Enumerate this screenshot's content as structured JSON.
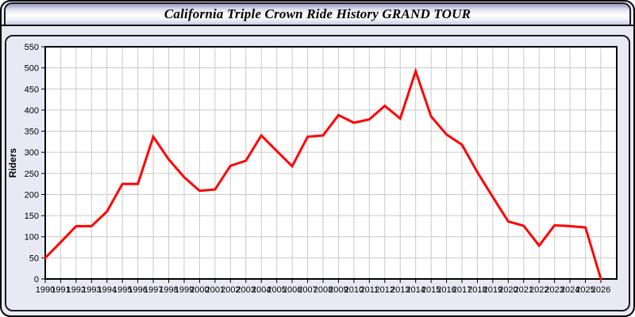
{
  "window": {
    "title": "California Triple Crown Ride History GRAND TOUR"
  },
  "colors": {
    "line": "#FF0000",
    "background": "#E9E9F6",
    "plot_background": "#FFFFFF",
    "gridline": "#C9C9C9",
    "axis": "#000000"
  },
  "chart_data": {
    "type": "line",
    "title": "California Triple Crown Ride History GRAND TOUR",
    "xlabel": "",
    "ylabel": "Riders",
    "x": [
      1990,
      1991,
      1992,
      1993,
      1994,
      1995,
      1996,
      1997,
      1998,
      1999,
      2000,
      2001,
      2002,
      2003,
      2004,
      2005,
      2006,
      2007,
      2008,
      2009,
      2010,
      2011,
      2012,
      2013,
      2014,
      2015,
      2016,
      2017,
      2018,
      2019,
      2020,
      2021,
      2022,
      2023,
      2024,
      2025,
      2026
    ],
    "series": [
      {
        "name": "Riders",
        "color": "#FF0000",
        "values": [
          50,
          87,
          125,
          125,
          160,
          225,
          225,
          337,
          283,
          241,
          209,
          212,
          268,
          280,
          340,
          303,
          267,
          337,
          340,
          388,
          370,
          378,
          410,
          380,
          492,
          385,
          342,
          318,
          253,
          194,
          136,
          126,
          79,
          127,
          125,
          122,
          0
        ]
      }
    ],
    "ylim": [
      0,
      550
    ],
    "ytick_step": 50,
    "grid": true,
    "legend": false
  }
}
